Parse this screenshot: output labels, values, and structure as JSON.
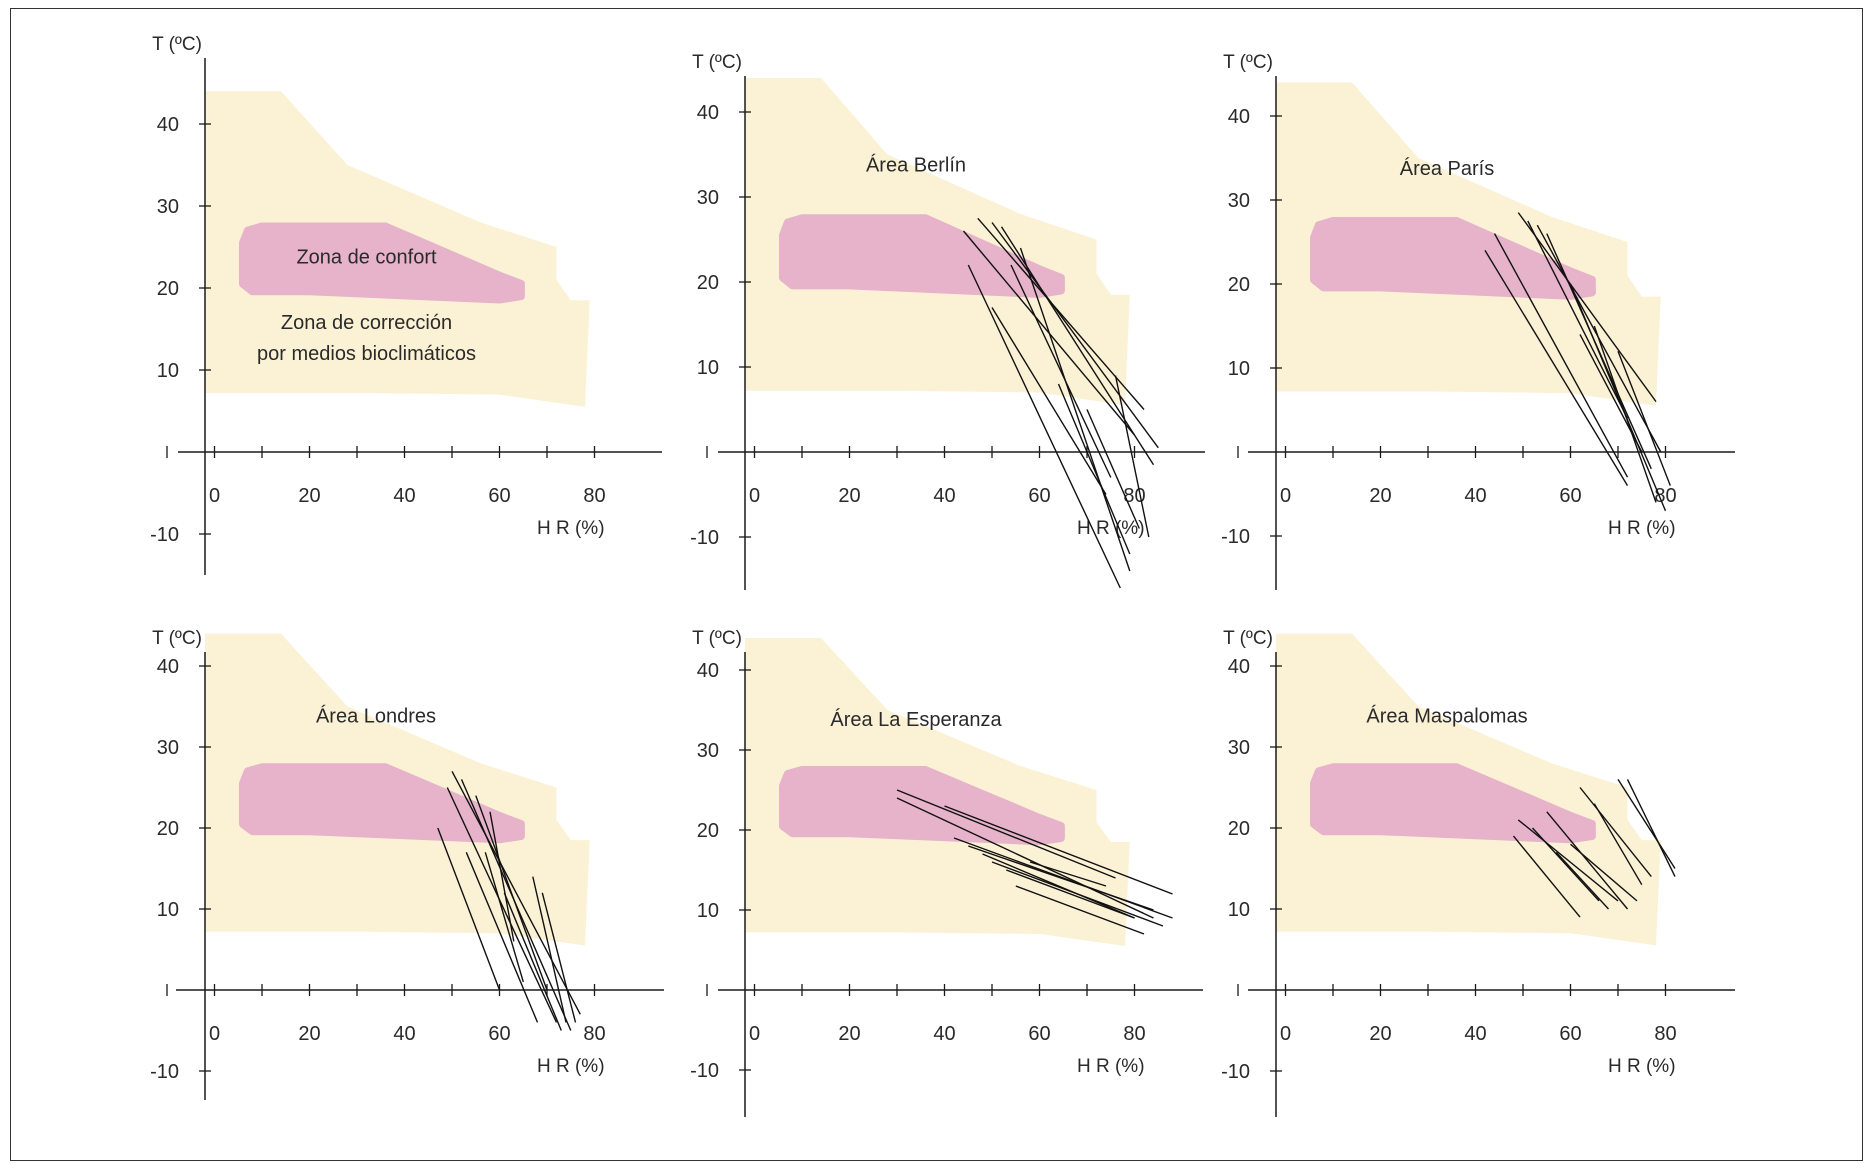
{
  "colors": {
    "correction_zone": "#fbf2d5",
    "comfort_zone": "#e6b3cb",
    "axis": "#1a1a1a",
    "data_lines": "#111111"
  },
  "axis_text": {
    "ylabel": "T (ºC)",
    "xlabel": "H R (%)"
  },
  "chart_data": [
    {
      "type": "line",
      "panel": "top-left",
      "title": "",
      "ylabel": "T (ºC)",
      "xlabel": "H R (%)",
      "xticks": [
        "0",
        "20",
        "40",
        "60",
        "80"
      ],
      "yticks": [
        "40",
        "30",
        "20",
        "10",
        "-10"
      ],
      "xlim": [
        -10,
        90
      ],
      "ylim": [
        -15,
        50
      ],
      "annotations": [
        "Zona de confort",
        "Zona de corrección",
        "por medios bioclimáticos"
      ],
      "series": []
    },
    {
      "type": "line",
      "panel": "top-center",
      "title": "Área Berlín",
      "ylabel": "T (ºC)",
      "xlabel": "H R (%)",
      "xticks": [
        "0",
        "20",
        "40",
        "60",
        "80"
      ],
      "yticks": [
        "40",
        "30",
        "20",
        "10",
        "-10"
      ],
      "xlim": [
        -10,
        90
      ],
      "ylim": [
        -15,
        50
      ],
      "annotations": [],
      "series": [
        {
          "x": [
            44,
            80
          ],
          "y": [
            26,
            2
          ]
        },
        {
          "x": [
            47,
            82
          ],
          "y": [
            27.5,
            5
          ]
        },
        {
          "x": [
            50,
            85
          ],
          "y": [
            27,
            0.5
          ]
        },
        {
          "x": [
            52,
            84
          ],
          "y": [
            26.5,
            -1.5
          ]
        },
        {
          "x": [
            56,
            79
          ],
          "y": [
            24,
            -14
          ]
        },
        {
          "x": [
            45,
            77
          ],
          "y": [
            22,
            -16
          ]
        },
        {
          "x": [
            50,
            74
          ],
          "y": [
            17,
            -5
          ]
        },
        {
          "x": [
            64,
            79
          ],
          "y": [
            8,
            -12
          ]
        },
        {
          "x": [
            70,
            81
          ],
          "y": [
            5,
            -9
          ]
        },
        {
          "x": [
            76,
            83
          ],
          "y": [
            9,
            -10
          ]
        },
        {
          "x": [
            54,
            75
          ],
          "y": [
            22,
            -3
          ]
        }
      ]
    },
    {
      "type": "line",
      "panel": "top-right",
      "title": "Área París",
      "ylabel": "T (ºC)",
      "xlabel": "H R (%)",
      "xticks": [
        "0",
        "20",
        "40",
        "60",
        "80"
      ],
      "yticks": [
        "40",
        "30",
        "20",
        "10",
        "-10"
      ],
      "xlim": [
        -10,
        90
      ],
      "ylim": [
        -15,
        50
      ],
      "annotations": [],
      "series": [
        {
          "x": [
            49,
            78
          ],
          "y": [
            28.5,
            6
          ]
        },
        {
          "x": [
            51,
            72
          ],
          "y": [
            27.5,
            4
          ]
        },
        {
          "x": [
            53,
            79
          ],
          "y": [
            27,
            0
          ]
        },
        {
          "x": [
            55,
            77
          ],
          "y": [
            26,
            -2
          ]
        },
        {
          "x": [
            44,
            72
          ],
          "y": [
            26,
            -3
          ]
        },
        {
          "x": [
            42,
            72
          ],
          "y": [
            24,
            -4
          ]
        },
        {
          "x": [
            60,
            80
          ],
          "y": [
            20,
            -7
          ]
        },
        {
          "x": [
            65,
            78
          ],
          "y": [
            15,
            -6
          ]
        },
        {
          "x": [
            70,
            81
          ],
          "y": [
            12,
            -4
          ]
        },
        {
          "x": [
            62,
            75
          ],
          "y": [
            14,
            0
          ]
        }
      ]
    },
    {
      "type": "line",
      "panel": "bottom-left",
      "title": "Área Londres",
      "ylabel": "T (ºC)",
      "xlabel": "H R (%)",
      "xticks": [
        "0",
        "20",
        "40",
        "60",
        "80"
      ],
      "yticks": [
        "40",
        "30",
        "20",
        "10",
        "-10"
      ],
      "xlim": [
        -10,
        90
      ],
      "ylim": [
        -15,
        50
      ],
      "annotations": [],
      "series": [
        {
          "x": [
            50,
            77
          ],
          "y": [
            27,
            -3
          ]
        },
        {
          "x": [
            52,
            75
          ],
          "y": [
            26,
            -5
          ]
        },
        {
          "x": [
            49,
            72
          ],
          "y": [
            25,
            -4
          ]
        },
        {
          "x": [
            55,
            70
          ],
          "y": [
            24,
            0
          ]
        },
        {
          "x": [
            47,
            60
          ],
          "y": [
            20,
            0
          ]
        },
        {
          "x": [
            53,
            68
          ],
          "y": [
            17,
            -4
          ]
        },
        {
          "x": [
            57,
            65
          ],
          "y": [
            17,
            1
          ]
        },
        {
          "x": [
            61,
            73
          ],
          "y": [
            12,
            -5
          ]
        },
        {
          "x": [
            67,
            74
          ],
          "y": [
            14,
            -4
          ]
        },
        {
          "x": [
            69,
            76
          ],
          "y": [
            12,
            -4
          ]
        },
        {
          "x": [
            58,
            63
          ],
          "y": [
            22,
            6
          ]
        }
      ]
    },
    {
      "type": "line",
      "panel": "bottom-center",
      "title": "Área La Esperanza",
      "ylabel": "T (ºC)",
      "xlabel": "H R (%)",
      "xticks": [
        "0",
        "20",
        "40",
        "60",
        "80"
      ],
      "yticks": [
        "40",
        "30",
        "20",
        "10",
        "-10"
      ],
      "xlim": [
        -10,
        90
      ],
      "ylim": [
        -15,
        50
      ],
      "annotations": [],
      "series": [
        {
          "x": [
            30,
            76
          ],
          "y": [
            25,
            14
          ]
        },
        {
          "x": [
            30,
            84
          ],
          "y": [
            24,
            9
          ]
        },
        {
          "x": [
            40,
            88
          ],
          "y": [
            23,
            12
          ]
        },
        {
          "x": [
            42,
            88
          ],
          "y": [
            19,
            9
          ]
        },
        {
          "x": [
            45,
            84
          ],
          "y": [
            18,
            10
          ]
        },
        {
          "x": [
            48,
            80
          ],
          "y": [
            17,
            9
          ]
        },
        {
          "x": [
            50,
            86
          ],
          "y": [
            16,
            8
          ]
        },
        {
          "x": [
            53,
            80
          ],
          "y": [
            15,
            9
          ]
        },
        {
          "x": [
            55,
            82
          ],
          "y": [
            13,
            7
          ]
        },
        {
          "x": [
            58,
            74
          ],
          "y": [
            16,
            13
          ]
        }
      ]
    },
    {
      "type": "line",
      "panel": "bottom-right",
      "title": "Área Maspalomas",
      "ylabel": "T (ºC)",
      "xlabel": "H R (%)",
      "xticks": [
        "0",
        "20",
        "40",
        "60",
        "80"
      ],
      "yticks": [
        "40",
        "30",
        "20",
        "10",
        "-10"
      ],
      "xlim": [
        -10,
        90
      ],
      "ylim": [
        -15,
        50
      ],
      "annotations": [],
      "series": [
        {
          "x": [
            49,
            70
          ],
          "y": [
            21,
            11
          ]
        },
        {
          "x": [
            48,
            62
          ],
          "y": [
            19,
            9
          ]
        },
        {
          "x": [
            52,
            66
          ],
          "y": [
            20,
            11
          ]
        },
        {
          "x": [
            55,
            72
          ],
          "y": [
            22,
            10
          ]
        },
        {
          "x": [
            57,
            68
          ],
          "y": [
            17,
            10
          ]
        },
        {
          "x": [
            60,
            74
          ],
          "y": [
            18,
            11
          ]
        },
        {
          "x": [
            62,
            77
          ],
          "y": [
            25,
            14
          ]
        },
        {
          "x": [
            65,
            75
          ],
          "y": [
            23,
            13
          ]
        },
        {
          "x": [
            70,
            82
          ],
          "y": [
            26,
            15
          ]
        },
        {
          "x": [
            72,
            82
          ],
          "y": [
            26,
            14
          ]
        }
      ]
    }
  ]
}
